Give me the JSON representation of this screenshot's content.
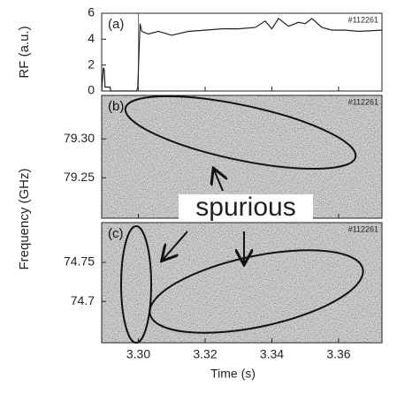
{
  "chart_data": [
    {
      "type": "line",
      "panel_label": "(a)",
      "shot": "#112261",
      "ylabel": "RF (a.u.)",
      "x": [
        3.289,
        3.2895,
        3.2898,
        3.29,
        3.2902,
        3.2915,
        3.2917,
        3.2995,
        3.2998,
        3.3005,
        3.301,
        3.303,
        3.306,
        3.31,
        3.315,
        3.32,
        3.325,
        3.33,
        3.335,
        3.338,
        3.34,
        3.342,
        3.345,
        3.348,
        3.35,
        3.352,
        3.355,
        3.358,
        3.362,
        3.366,
        3.373
      ],
      "values": [
        0,
        1.8,
        1.6,
        0.3,
        0.3,
        0.3,
        0,
        0,
        0.3,
        5.2,
        4.6,
        4.4,
        4.6,
        4.3,
        4.6,
        4.7,
        4.8,
        4.8,
        4.9,
        5.4,
        4.8,
        5.6,
        5.0,
        5.3,
        5.2,
        5.6,
        4.9,
        4.7,
        4.7,
        4.6,
        4.7
      ],
      "color": "#222222",
      "xlim": [
        3.289,
        3.373
      ],
      "xticks": [
        3.3,
        3.32,
        3.34,
        3.36
      ],
      "ylim": [
        0,
        6
      ],
      "yticks": [
        0,
        2,
        4,
        6
      ]
    },
    {
      "type": "spectrogram",
      "panel_label": "(b)",
      "shot": "#112261",
      "ylabel": "Frequency (GHz)",
      "xlim": [
        3.289,
        3.373
      ],
      "xticks": [
        3.3,
        3.32,
        3.34,
        3.36
      ],
      "ylim": [
        79.198,
        79.356
      ],
      "yticks": [
        {
          "value": 79.3,
          "label": "79.30"
        },
        {
          "value": 79.25,
          "label": "79.25"
        }
      ]
    },
    {
      "type": "spectrogram",
      "panel_label": "(c)",
      "shot": "#112261",
      "xlabel": "Time (s)",
      "annotation": "spurious",
      "xlim": [
        3.289,
        3.373
      ],
      "xticks": [
        {
          "value": 3.3,
          "label": "3.30"
        },
        {
          "value": 3.32,
          "label": "3.32"
        },
        {
          "value": 3.34,
          "label": "3.34"
        },
        {
          "value": 3.36,
          "label": "3.36"
        }
      ],
      "ylim": [
        74.647,
        74.801
      ],
      "yticks": [
        74.75,
        74.7
      ]
    }
  ]
}
